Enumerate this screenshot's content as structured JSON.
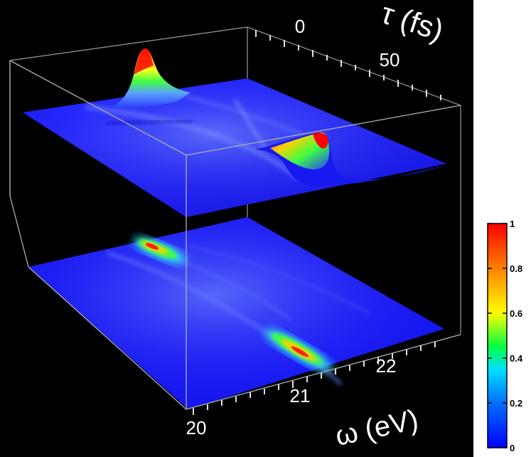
{
  "chart_data": {
    "type": "surface",
    "axes": {
      "tau": {
        "label": "τ (fs)",
        "ticks": [
          "0",
          "50"
        ],
        "range": [
          -20,
          80
        ]
      },
      "omega": {
        "label": "ω (eV)",
        "ticks": [
          "20",
          "21",
          "22"
        ],
        "range": [
          20,
          22.6
        ]
      }
    },
    "colorbar": {
      "range": [
        0,
        1
      ],
      "ticks": [
        "0",
        "0.2",
        "0.4",
        "0.6",
        "0.8",
        "1"
      ],
      "colormap": [
        "#0000ff",
        "#00c8ff",
        "#00ff00",
        "#ffff00",
        "#ff8000",
        "#ff0000"
      ]
    },
    "surface_peaks": [
      {
        "tau": -10,
        "omega": 20.6,
        "amplitude": 1.0,
        "layer": "upper"
      },
      {
        "tau": 45,
        "omega": 21.9,
        "amplitude": 0.95,
        "layer": "upper"
      },
      {
        "tau": -10,
        "omega": 20.6,
        "amplitude": 0.95,
        "layer": "projection"
      },
      {
        "tau": 45,
        "omega": 21.9,
        "amplitude": 0.9,
        "layer": "projection"
      }
    ],
    "background_color": "#000000",
    "box_color": "#9a9a9a"
  },
  "labels": {
    "tau_axis_label": "τ (fs)",
    "omega_axis_label": "ω (eV)",
    "tau_tick_0": "0",
    "tau_tick_50": "50",
    "omega_tick_20": "20",
    "omega_tick_21": "21",
    "omega_tick_22": "22",
    "cb_tick_0": "0",
    "cb_tick_02": "0.2",
    "cb_tick_04": "0.4",
    "cb_tick_06": "0.6",
    "cb_tick_08": "0.8",
    "cb_tick_1": "1"
  }
}
